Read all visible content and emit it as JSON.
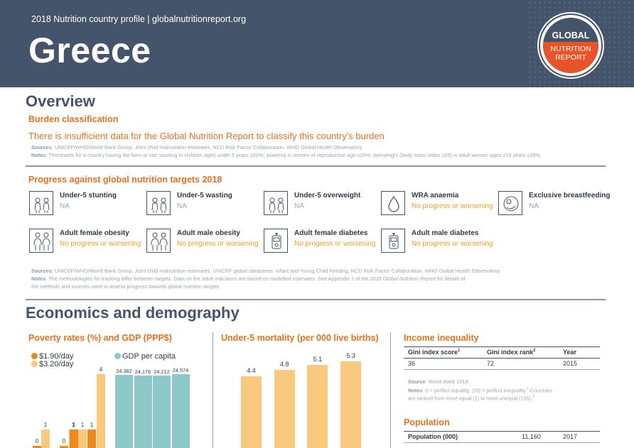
{
  "header": {
    "subtitle": "2018 Nutrition country profile  |  globalnutritionreport.org",
    "country": "Greece",
    "logo_line1": "GLOBAL",
    "logo_line2": "NUTRITION",
    "logo_line3": "REPORT"
  },
  "overview": {
    "title": "Overview",
    "burden_heading": "Burden classification",
    "burden_text": "There is insufficient data for the Global Nutrition Report to classify this country's burden",
    "source1_label": "Sources",
    "source1": ": UNICEF/WHO/World Bank Group: Joint child malnutrition estimates, NCD Risk Factor Collaboration, WHO Global Health Observatory.",
    "notes1_label": "Notes",
    "notes1": ": Thresholds for a country having the form or not: stunting in children aged under 5 years ≥20%; anaemia in women of reproductive age ≥20%; overweight (body mass index ≥25) in adult women aged ≥18 years ≥35%.",
    "progress_heading": "Progress against global nutrition targets 2018",
    "targets": [
      {
        "label": "Under-5 stunting",
        "status": "NA",
        "icon": "children-icon",
        "kind": "na"
      },
      {
        "label": "Under-5 wasting",
        "status": "NA",
        "icon": "children-icon",
        "kind": "na"
      },
      {
        "label": "Under-5 overweight",
        "status": "NA",
        "icon": "children-icon",
        "kind": "na"
      },
      {
        "label": "WRA anaemia",
        "status": "No progress or worsening",
        "icon": "blood-drop-icon",
        "kind": "np"
      },
      {
        "label": "Exclusive breastfeeding",
        "status": "NA",
        "icon": "breastfeeding-icon",
        "kind": "na"
      },
      {
        "label": "Adult female obesity",
        "status": "No progress or worsening",
        "icon": "adults-icon",
        "kind": "np"
      },
      {
        "label": "Adult male obesity",
        "status": "No progress or worsening",
        "icon": "adults-icon",
        "kind": "np"
      },
      {
        "label": "Adult female diabetes",
        "status": "No progress or worsening",
        "icon": "glucose-meter-icon",
        "kind": "np"
      },
      {
        "label": "Adult male diabetes",
        "status": "No progress or worsening",
        "icon": "glucose-meter-icon",
        "kind": "np"
      }
    ],
    "source2_label": "Sources",
    "source2": ": UNICEF/WHO/World Bank Group: Joint child malnutrition estimates, UNICEF global databases: Infant and Young Child Feeding, NCD Risk Factor Collaboration, WHO Global Health Observatory.",
    "notes2_label": "Notes",
    "notes2a": ": The methodologies for tracking differ between targets. Data on the adult indicators are based on modelled estimates. See Appendix 1 of the ",
    "notes2_report": "2018 Global Nutrition Report",
    "notes2b": " for details of",
    "notes2c": "the methods and sources used to assess progress towards global nutrition targets."
  },
  "economics": {
    "title": "Economics and demography",
    "poverty_heading": "Poverty rates (%) and GDP (PPP$)",
    "mortality_heading": "Under-5 mortality (per 000 live births)",
    "income_heading": "Income inequality",
    "income_table": {
      "col1": "Gini index score",
      "col1_sup": "1",
      "col2": "Gini index rank",
      "col2_sup": "2",
      "col3": "Year",
      "v1": "36",
      "v2": "72",
      "v3": "2015"
    },
    "income_source_label": "Source",
    "income_source": ": World Bank 2018.",
    "income_notes_label": "Notes",
    "income_notes_a": ": 0 = perfect equality, 100 = perfect inequality.",
    "income_notes_sup1": "1",
    "income_notes_b": " Countries",
    "income_notes_c": "are ranked from most equal (1) to most unequal (155).",
    "income_notes_sup2": "2",
    "population_heading": "Population",
    "population_table": {
      "label": "Population (000)",
      "value": "11,160",
      "year": "2017"
    }
  },
  "colors": {
    "header": "#44546a",
    "orange": "#e8711f",
    "poverty_190": "#f0881a",
    "poverty_320": "#fac97d",
    "gdp": "#8ec9c9",
    "mortality": "#fac97d"
  },
  "chart_data": [
    {
      "type": "bar",
      "title": "Poverty rates (%) and GDP (PPP$)",
      "legend": [
        "$1.90/day",
        "$3.20/day",
        "GDP per capita"
      ],
      "poverty_pairs": [
        {
          "label_190": "0",
          "label_320": "1",
          "value_190": 0,
          "value_320": 1
        },
        {
          "label_190": "0",
          "label_320": "1",
          "value_190": 0,
          "value_320": 1
        },
        {
          "label_190": "1",
          "label_320": "1",
          "value_190": 1,
          "value_320": 1
        },
        {
          "label_190": "1",
          "label_320": "4",
          "value_190": 1,
          "value_320": 4
        }
      ],
      "gdp_labels": [
        "24,382",
        "24,176",
        "24,212",
        "24,574"
      ],
      "gdp_values": [
        24382,
        24176,
        24212,
        24574
      ]
    },
    {
      "type": "bar",
      "title": "Under-5 mortality (per 000 live births)",
      "values": [
        4.4,
        4.8,
        5.1,
        5.3
      ],
      "labels": [
        "4.4",
        "4.8",
        "5.1",
        "5.3"
      ]
    }
  ]
}
